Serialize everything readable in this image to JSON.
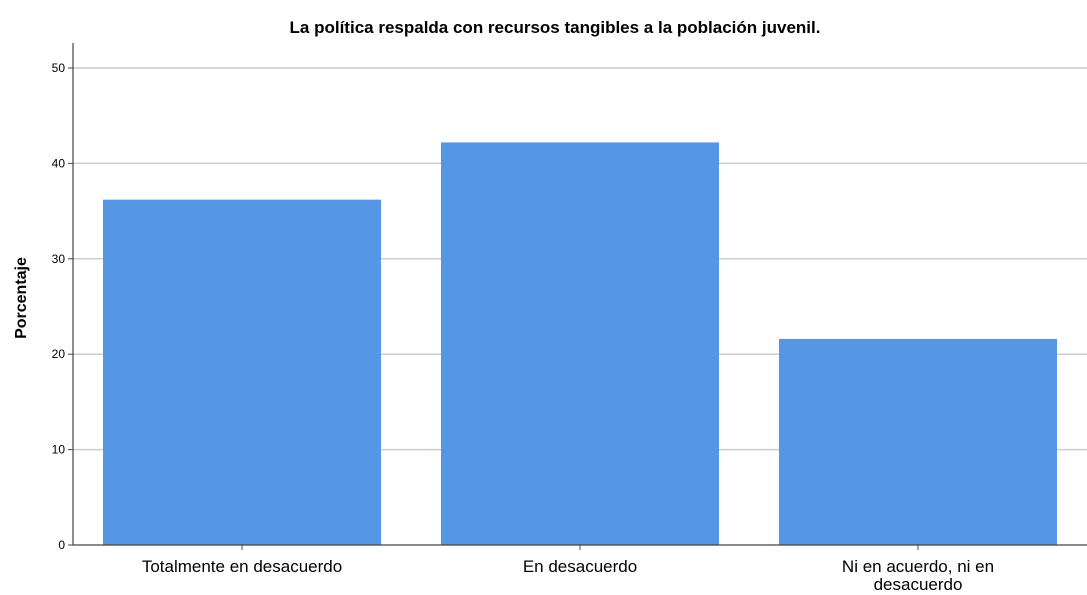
{
  "chart_data": {
    "type": "bar",
    "title": "La política respalda con recursos tangibles a la población juvenil.",
    "xlabel": "",
    "ylabel": "Porcentaje",
    "categories": [
      "Totalmente en desacuerdo",
      "En desacuerdo",
      "Ni en acuerdo, ni en desacuerdo"
    ],
    "category_label_lines": [
      [
        "Totalmente en desacuerdo"
      ],
      [
        "En desacuerdo"
      ],
      [
        "Ni en acuerdo, ni en",
        "desacuerdo"
      ]
    ],
    "values": [
      36.2,
      42.2,
      21.6
    ],
    "ylim": [
      0,
      50
    ],
    "yticks": [
      0,
      10,
      20,
      30,
      40,
      50
    ],
    "grid": true,
    "bar_color": "#5596e5",
    "grid_color": "#cccccc",
    "axis_color": "#444444"
  }
}
